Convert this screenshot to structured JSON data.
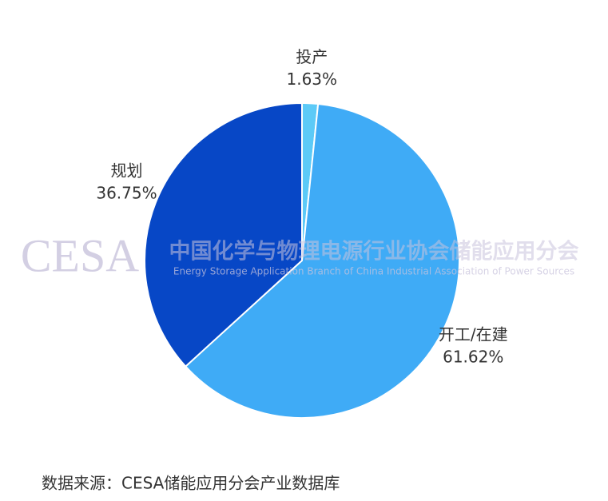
{
  "chart_data": {
    "type": "pie",
    "categories": [
      "投产",
      "开工/在建",
      "规划"
    ],
    "values": [
      1.63,
      61.62,
      36.75
    ],
    "value_labels": [
      "1.63%",
      "61.62%",
      "36.75%"
    ],
    "colors": [
      "#5ccaf7",
      "#3fabf6",
      "#0747c6"
    ],
    "watermark": {
      "logo": "CESA",
      "title": "中国化学与物理电源行业协会储能应用分会",
      "subtitle": "Energy Storage Application Branch of China Industrial Association of Power Sources"
    },
    "source": "数据来源：CESA储能应用分会产业数据库"
  }
}
